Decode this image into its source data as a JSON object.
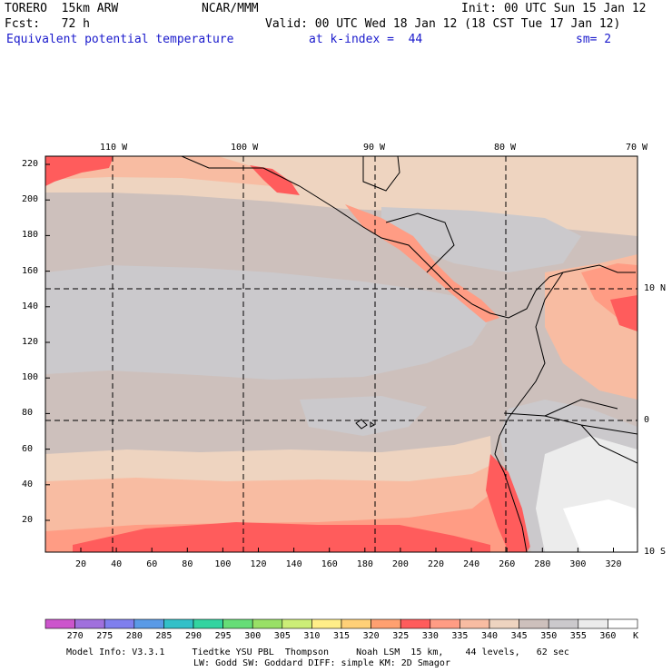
{
  "header": {
    "model": "TORERO  15km ARW",
    "center": "NCAR/MMM",
    "init": "Init: 00 UTC Sun 15 Jan 12",
    "fcst": "Fcst:   72 h",
    "valid": "Valid: 00 UTC Wed 18 Jan 12 (18 CST Tue 17 Jan 12)",
    "field": "Equivalent potential temperature",
    "level": "at k-index =  44",
    "smooth": "sm= 2"
  },
  "axes": {
    "top_lon_labels": [
      "110 W",
      "100 W",
      "90 W",
      "80 W",
      "70 W"
    ],
    "right_lat_labels": [
      "10 N",
      "0",
      "10 S"
    ],
    "left_grid_labels": [
      "220",
      "200",
      "180",
      "160",
      "140",
      "120",
      "100",
      "80",
      "60",
      "40",
      "20"
    ],
    "bottom_grid_labels": [
      "20",
      "40",
      "60",
      "80",
      "100",
      "120",
      "140",
      "160",
      "180",
      "200",
      "220",
      "240",
      "260",
      "280",
      "300",
      "320"
    ]
  },
  "colorbar": {
    "unit": "K",
    "labels": [
      "270",
      "275",
      "280",
      "285",
      "290",
      "295",
      "300",
      "305",
      "310",
      "315",
      "320",
      "325",
      "330",
      "335",
      "340",
      "345",
      "350",
      "355",
      "360"
    ],
    "colors": [
      "#cc55cc",
      "#a070dd",
      "#7f7fee",
      "#5a9ae6",
      "#33c0c8",
      "#33d4a0",
      "#66dd77",
      "#99e066",
      "#ccee77",
      "#ffee88",
      "#ffd077",
      "#ffa070",
      "#ff5c5c",
      "#ff9c84",
      "#f8bca2",
      "#eed4c0",
      "#cdc0bc",
      "#cbc9cc",
      "#ececec",
      "#ffffff"
    ]
  },
  "footer": {
    "line1": "Model Info: V3.3.1     Tiedtke YSU PBL  Thompson     Noah LSM  15 km,    44 levels,   62 sec",
    "line2": "LW: Godd SW: Goddard DIFF: simple KM: 2D Smagor"
  }
}
